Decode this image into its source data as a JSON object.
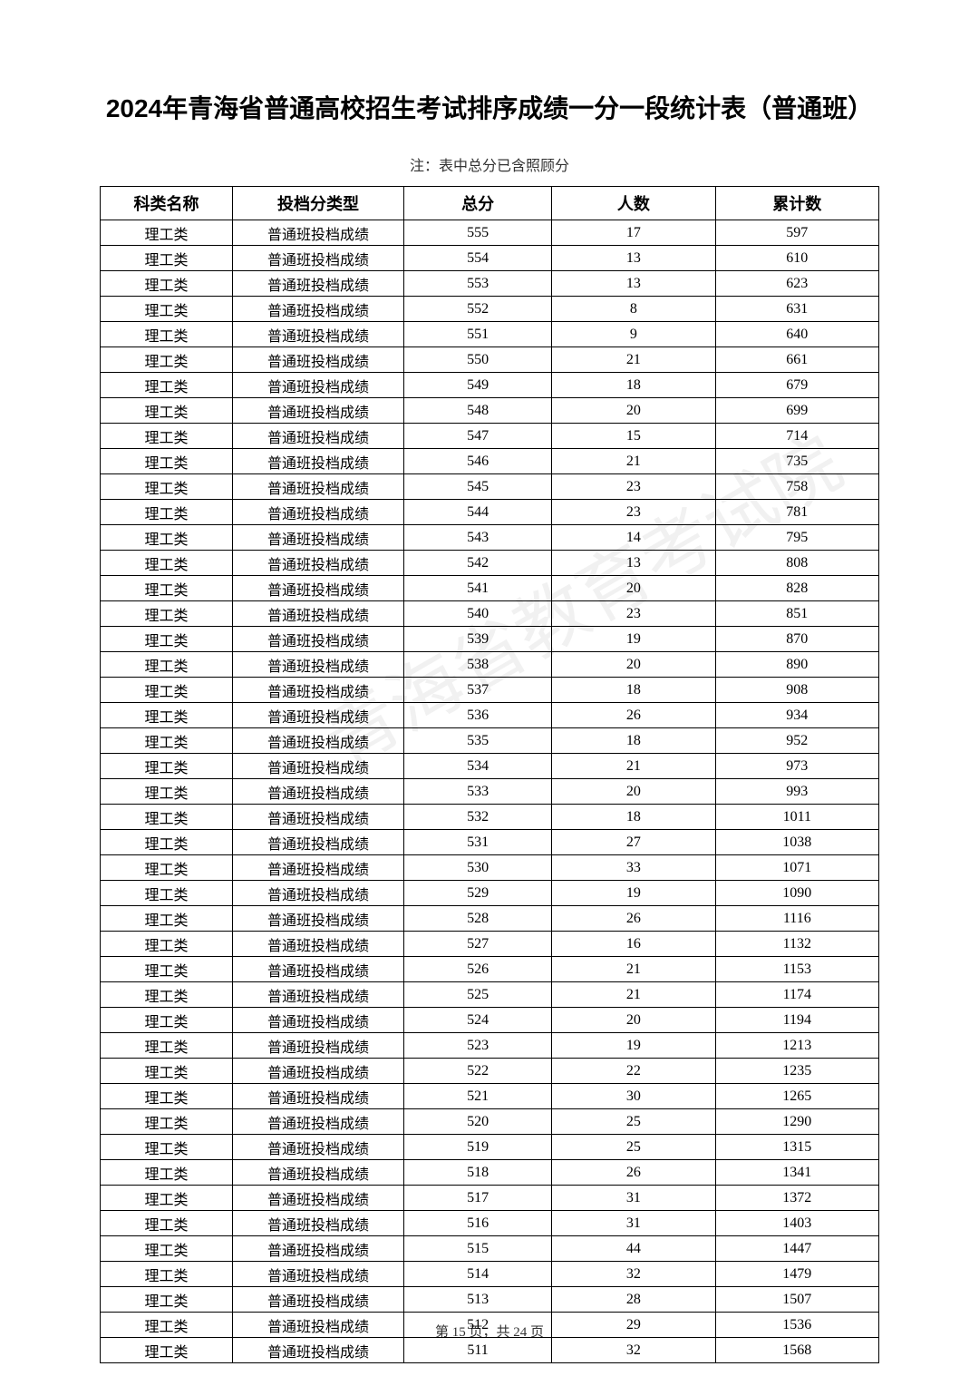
{
  "title": "2024年青海省普通高校招生考试排序成绩一分一段统计表（普通班）",
  "note": "注：表中总分已含照顾分",
  "watermark": "青海省教育考试院",
  "pageNumber": "第 15 页，共 24 页",
  "table": {
    "columns": [
      "科类名称",
      "投档分类型",
      "总分",
      "人数",
      "累计数"
    ],
    "rows": [
      [
        "理工类",
        "普通班投档成绩",
        "555",
        "17",
        "597"
      ],
      [
        "理工类",
        "普通班投档成绩",
        "554",
        "13",
        "610"
      ],
      [
        "理工类",
        "普通班投档成绩",
        "553",
        "13",
        "623"
      ],
      [
        "理工类",
        "普通班投档成绩",
        "552",
        "8",
        "631"
      ],
      [
        "理工类",
        "普通班投档成绩",
        "551",
        "9",
        "640"
      ],
      [
        "理工类",
        "普通班投档成绩",
        "550",
        "21",
        "661"
      ],
      [
        "理工类",
        "普通班投档成绩",
        "549",
        "18",
        "679"
      ],
      [
        "理工类",
        "普通班投档成绩",
        "548",
        "20",
        "699"
      ],
      [
        "理工类",
        "普通班投档成绩",
        "547",
        "15",
        "714"
      ],
      [
        "理工类",
        "普通班投档成绩",
        "546",
        "21",
        "735"
      ],
      [
        "理工类",
        "普通班投档成绩",
        "545",
        "23",
        "758"
      ],
      [
        "理工类",
        "普通班投档成绩",
        "544",
        "23",
        "781"
      ],
      [
        "理工类",
        "普通班投档成绩",
        "543",
        "14",
        "795"
      ],
      [
        "理工类",
        "普通班投档成绩",
        "542",
        "13",
        "808"
      ],
      [
        "理工类",
        "普通班投档成绩",
        "541",
        "20",
        "828"
      ],
      [
        "理工类",
        "普通班投档成绩",
        "540",
        "23",
        "851"
      ],
      [
        "理工类",
        "普通班投档成绩",
        "539",
        "19",
        "870"
      ],
      [
        "理工类",
        "普通班投档成绩",
        "538",
        "20",
        "890"
      ],
      [
        "理工类",
        "普通班投档成绩",
        "537",
        "18",
        "908"
      ],
      [
        "理工类",
        "普通班投档成绩",
        "536",
        "26",
        "934"
      ],
      [
        "理工类",
        "普通班投档成绩",
        "535",
        "18",
        "952"
      ],
      [
        "理工类",
        "普通班投档成绩",
        "534",
        "21",
        "973"
      ],
      [
        "理工类",
        "普通班投档成绩",
        "533",
        "20",
        "993"
      ],
      [
        "理工类",
        "普通班投档成绩",
        "532",
        "18",
        "1011"
      ],
      [
        "理工类",
        "普通班投档成绩",
        "531",
        "27",
        "1038"
      ],
      [
        "理工类",
        "普通班投档成绩",
        "530",
        "33",
        "1071"
      ],
      [
        "理工类",
        "普通班投档成绩",
        "529",
        "19",
        "1090"
      ],
      [
        "理工类",
        "普通班投档成绩",
        "528",
        "26",
        "1116"
      ],
      [
        "理工类",
        "普通班投档成绩",
        "527",
        "16",
        "1132"
      ],
      [
        "理工类",
        "普通班投档成绩",
        "526",
        "21",
        "1153"
      ],
      [
        "理工类",
        "普通班投档成绩",
        "525",
        "21",
        "1174"
      ],
      [
        "理工类",
        "普通班投档成绩",
        "524",
        "20",
        "1194"
      ],
      [
        "理工类",
        "普通班投档成绩",
        "523",
        "19",
        "1213"
      ],
      [
        "理工类",
        "普通班投档成绩",
        "522",
        "22",
        "1235"
      ],
      [
        "理工类",
        "普通班投档成绩",
        "521",
        "30",
        "1265"
      ],
      [
        "理工类",
        "普通班投档成绩",
        "520",
        "25",
        "1290"
      ],
      [
        "理工类",
        "普通班投档成绩",
        "519",
        "25",
        "1315"
      ],
      [
        "理工类",
        "普通班投档成绩",
        "518",
        "26",
        "1341"
      ],
      [
        "理工类",
        "普通班投档成绩",
        "517",
        "31",
        "1372"
      ],
      [
        "理工类",
        "普通班投档成绩",
        "516",
        "31",
        "1403"
      ],
      [
        "理工类",
        "普通班投档成绩",
        "515",
        "44",
        "1447"
      ],
      [
        "理工类",
        "普通班投档成绩",
        "514",
        "32",
        "1479"
      ],
      [
        "理工类",
        "普通班投档成绩",
        "513",
        "28",
        "1507"
      ],
      [
        "理工类",
        "普通班投档成绩",
        "512",
        "29",
        "1536"
      ],
      [
        "理工类",
        "普通班投档成绩",
        "511",
        "32",
        "1568"
      ]
    ],
    "header_fontsize": 18,
    "cell_fontsize": 16,
    "border_color": "#000000",
    "background_color": "#ffffff"
  }
}
